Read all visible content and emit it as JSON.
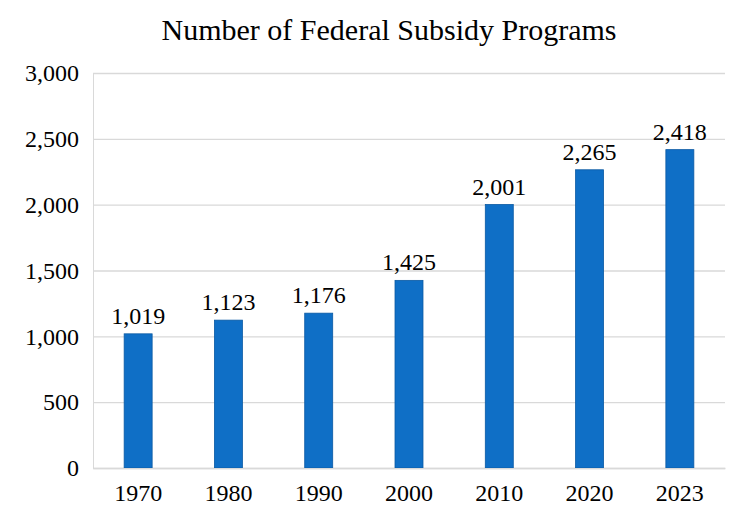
{
  "chart_data": {
    "type": "bar",
    "title": "Number of Federal Subsidy Programs",
    "categories": [
      "1970",
      "1980",
      "1990",
      "2000",
      "2010",
      "2020",
      "2023"
    ],
    "values": [
      1019,
      1123,
      1176,
      1425,
      2001,
      2265,
      2418
    ],
    "value_labels": [
      "1,019",
      "1,123",
      "1,176",
      "1,425",
      "2,001",
      "2,265",
      "2,418"
    ],
    "color": "#0f6fc6",
    "ylim": [
      0,
      3000
    ],
    "yticks": [
      0,
      500,
      {
        "value": 1000,
        "label": "1,000"
      },
      {
        "value": 1500,
        "label": "1,500"
      },
      {
        "value": 2000,
        "label": "2,000"
      },
      {
        "value": 2500,
        "label": "2,500"
      },
      {
        "value": 3000,
        "label": "3,000"
      }
    ],
    "grid": true,
    "data_labels": true
  }
}
